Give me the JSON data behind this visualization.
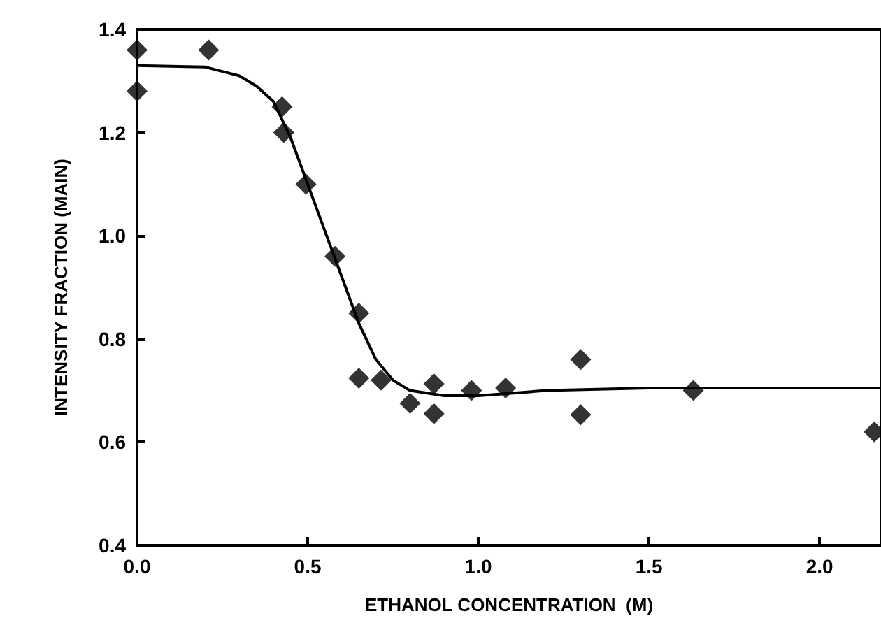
{
  "chart_data": {
    "type": "scatter",
    "xlabel": "ETHANOL CONCENTRATION  (M)",
    "ylabel": "INTENSITY FRACTION (MAIN)",
    "xlim": [
      0,
      2.18
    ],
    "ylim": [
      0.4,
      1.4
    ],
    "xticks": [
      {
        "value": 0,
        "label": "0.0"
      },
      {
        "value": 0.5,
        "label": "0.5"
      },
      {
        "value": 1,
        "label": "1.0"
      },
      {
        "value": 1.5,
        "label": "1.5"
      },
      {
        "value": 2,
        "label": "2.0"
      }
    ],
    "yticks": [
      {
        "value": 0.4,
        "label": "0.4"
      },
      {
        "value": 0.6,
        "label": "0.6"
      },
      {
        "value": 0.8,
        "label": "0.8"
      },
      {
        "value": 1,
        "label": "1.0"
      },
      {
        "value": 1.2,
        "label": "1.2"
      },
      {
        "value": 1.4,
        "label": "1.4"
      }
    ],
    "grid": false,
    "series": [
      {
        "color": "#000000",
        "marker": "diamond",
        "x": [
          0,
          0,
          0.21,
          0.425,
          0.43,
          0.495,
          0.58,
          0.65,
          0.65,
          0.715,
          0.8,
          0.87,
          0.87,
          0.98,
          1.08,
          1.3,
          1.3,
          1.63,
          2.16
        ],
        "values": [
          1.36,
          1.28,
          1.36,
          1.25,
          1.2,
          1.1,
          0.96,
          0.85,
          0.724,
          0.72,
          0.675,
          0.655,
          0.713,
          0.7,
          0.705,
          0.76,
          0.653,
          0.7,
          0.62
        ]
      },
      {
        "type": "line",
        "color": "#000000",
        "marker": "none",
        "line_style": "solid",
        "x": [
          0,
          0.2,
          0.3,
          0.35,
          0.4,
          0.45,
          0.5,
          0.55,
          0.6,
          0.65,
          0.7,
          0.75,
          0.8,
          0.9,
          1.0,
          1.2,
          1.5,
          2.18
        ],
        "values": [
          1.33,
          1.327,
          1.31,
          1.29,
          1.26,
          1.19,
          1.1,
          1.01,
          0.92,
          0.83,
          0.76,
          0.72,
          0.7,
          0.69,
          0.69,
          0.7,
          0.705,
          0.705
        ]
      }
    ]
  }
}
